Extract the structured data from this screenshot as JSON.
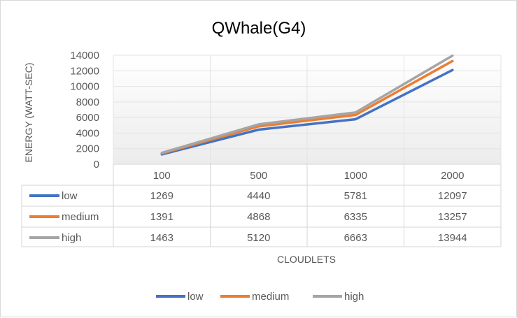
{
  "chart_data": {
    "type": "line",
    "title": "QWhale(G4)",
    "xlabel": "CLOUDLETS",
    "ylabel": "ENERGY (WATT-SEC)",
    "categories": [
      "100",
      "500",
      "1000",
      "2000"
    ],
    "ylim": [
      0,
      14000
    ],
    "yticks": [
      "0",
      "2000",
      "4000",
      "6000",
      "8000",
      "10000",
      "12000",
      "14000"
    ],
    "grid": true,
    "legend_position": "bottom",
    "data_table": true,
    "series": [
      {
        "name": "low",
        "color": "#4472c4",
        "values": [
          1269,
          4440,
          5781,
          12097
        ]
      },
      {
        "name": "medium",
        "color": "#ed7d31",
        "values": [
          1391,
          4868,
          6335,
          13257
        ]
      },
      {
        "name": "high",
        "color": "#a5a5a5",
        "values": [
          1463,
          5120,
          6663,
          13944
        ]
      }
    ]
  }
}
